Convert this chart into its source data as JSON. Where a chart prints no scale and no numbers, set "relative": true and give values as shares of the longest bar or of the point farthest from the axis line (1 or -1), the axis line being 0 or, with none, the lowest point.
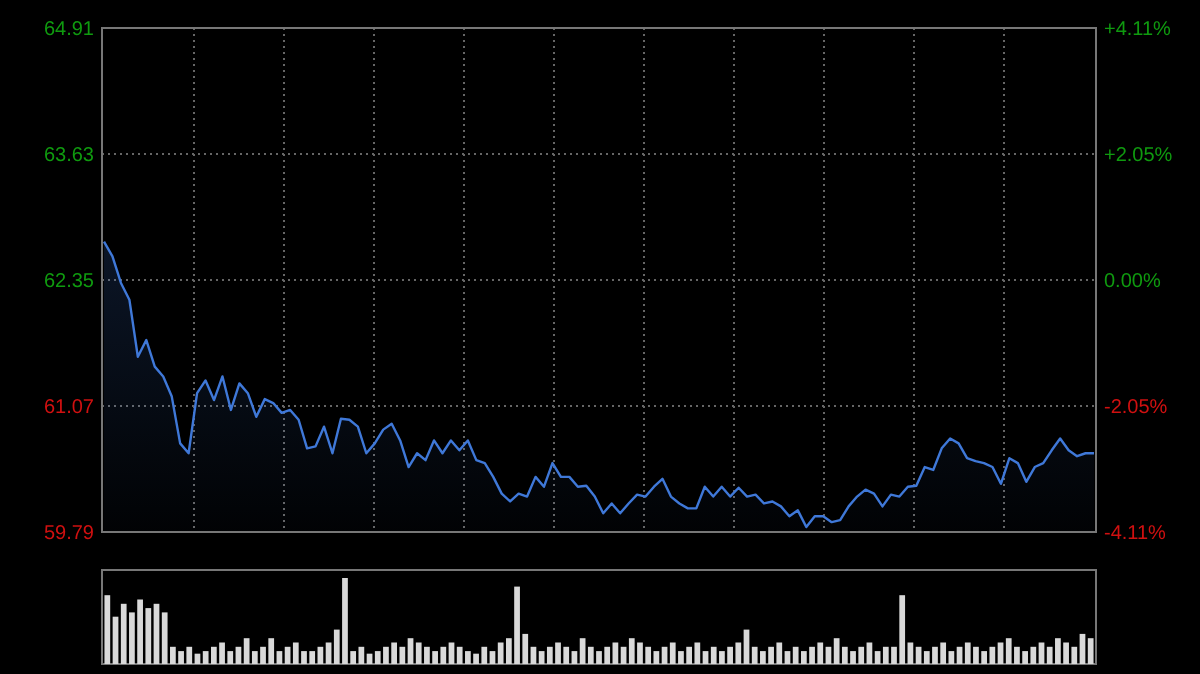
{
  "chart_data": [
    {
      "type": "area",
      "ylim": [
        59.79,
        64.91
      ],
      "y2lim": [
        -4.11,
        4.11
      ],
      "categories": [
        null,
        null,
        null,
        null,
        null,
        null,
        null,
        null,
        null,
        null,
        null,
        null,
        null,
        null,
        null,
        null,
        null,
        null,
        null,
        null,
        null,
        null,
        null,
        null,
        null,
        null,
        null,
        null,
        null,
        null,
        null,
        null,
        null,
        null,
        null,
        null,
        null,
        null,
        null,
        null,
        null,
        null,
        null,
        null,
        null,
        null,
        null,
        null,
        null,
        null,
        null,
        null,
        null,
        null,
        null,
        null,
        null,
        null,
        null,
        null,
        null,
        null,
        null,
        null,
        null,
        null,
        null,
        null,
        null,
        null,
        null,
        null,
        null,
        null,
        null,
        null,
        null,
        null,
        null,
        null,
        null,
        null,
        null,
        null,
        null,
        null,
        null,
        null,
        null,
        null,
        null,
        null,
        null,
        null,
        null,
        null,
        null,
        null,
        null,
        null,
        null,
        null,
        null,
        null,
        null,
        null,
        null,
        null,
        null,
        null,
        null,
        null,
        null,
        null,
        null,
        null,
        null,
        null
      ],
      "yticks": [
        59.79,
        61.07,
        62.35,
        63.63,
        64.91
      ],
      "y2ticks": [
        {
          "value": -4.11,
          "label": "-4.11%"
        },
        {
          "value": -2.05,
          "label": "-2.05%"
        },
        {
          "value": 0,
          "label": "0.00%"
        },
        {
          "value": 2.05,
          "label": "+2.05%"
        },
        {
          "value": 4.11,
          "label": "+4.11%"
        }
      ],
      "grid": true,
      "series": [
        {
          "color": "#3f78d8",
          "values": [
            62.74,
            62.59,
            62.32,
            62.15,
            61.57,
            61.74,
            61.47,
            61.37,
            61.17,
            60.69,
            60.59,
            61.2,
            61.33,
            61.13,
            61.37,
            61.03,
            61.3,
            61.2,
            60.96,
            61.14,
            61.1,
            61.0,
            61.03,
            60.93,
            60.64,
            60.66,
            60.86,
            60.59,
            60.94,
            60.93,
            60.86,
            60.59,
            60.69,
            60.83,
            60.89,
            60.72,
            60.45,
            60.59,
            60.52,
            60.72,
            60.59,
            60.72,
            60.62,
            60.72,
            60.52,
            60.49,
            60.35,
            60.18,
            60.1,
            60.18,
            60.15,
            60.35,
            60.25,
            60.49,
            60.35,
            60.35,
            60.25,
            60.26,
            60.15,
            59.98,
            60.08,
            59.98,
            60.08,
            60.17,
            60.15,
            60.25,
            60.33,
            60.15,
            60.08,
            60.03,
            60.03,
            60.25,
            60.15,
            60.25,
            60.15,
            60.24,
            60.15,
            60.17,
            60.08,
            60.1,
            60.05,
            59.95,
            60.01,
            59.84,
            59.95,
            59.95,
            59.89,
            59.91,
            60.05,
            60.15,
            60.22,
            60.18,
            60.05,
            60.17,
            60.15,
            60.25,
            60.26,
            60.45,
            60.42,
            60.64,
            60.74,
            60.69,
            60.54,
            60.51,
            60.49,
            60.45,
            60.28,
            60.54,
            60.49,
            60.3,
            60.45,
            60.49,
            60.62,
            60.74,
            60.62,
            60.56,
            60.59,
            60.59
          ]
        }
      ]
    },
    {
      "type": "bar",
      "relative": true,
      "color": "#d9d9d9",
      "categories": [
        null,
        null,
        null,
        null,
        null,
        null,
        null,
        null,
        null,
        null,
        null,
        null,
        null,
        null,
        null,
        null,
        null,
        null,
        null,
        null,
        null,
        null,
        null,
        null,
        null,
        null,
        null,
        null,
        null,
        null,
        null,
        null,
        null,
        null,
        null,
        null,
        null,
        null,
        null,
        null,
        null,
        null,
        null,
        null,
        null,
        null,
        null,
        null,
        null,
        null,
        null,
        null,
        null,
        null,
        null,
        null,
        null,
        null,
        null,
        null,
        null,
        null,
        null,
        null,
        null,
        null,
        null,
        null,
        null,
        null,
        null,
        null,
        null,
        null,
        null,
        null,
        null,
        null,
        null,
        null,
        null,
        null,
        null,
        null,
        null,
        null,
        null,
        null,
        null,
        null,
        null,
        null,
        null,
        null,
        null,
        null,
        null,
        null,
        null,
        null,
        null,
        null,
        null,
        null,
        null,
        null,
        null,
        null,
        null,
        null,
        null,
        null,
        null,
        null,
        null,
        null,
        null,
        null,
        null,
        null,
        null
      ],
      "values": [
        0.8,
        0.55,
        0.7,
        0.6,
        0.75,
        0.65,
        0.7,
        0.6,
        0.2,
        0.15,
        0.2,
        0.12,
        0.15,
        0.2,
        0.25,
        0.15,
        0.2,
        0.3,
        0.15,
        0.2,
        0.3,
        0.15,
        0.2,
        0.25,
        0.15,
        0.15,
        0.2,
        0.25,
        0.4,
        1.0,
        0.15,
        0.2,
        0.12,
        0.15,
        0.2,
        0.25,
        0.2,
        0.3,
        0.25,
        0.2,
        0.15,
        0.2,
        0.25,
        0.2,
        0.15,
        0.12,
        0.2,
        0.15,
        0.25,
        0.3,
        0.9,
        0.35,
        0.2,
        0.15,
        0.2,
        0.25,
        0.2,
        0.15,
        0.3,
        0.2,
        0.15,
        0.2,
        0.25,
        0.2,
        0.3,
        0.25,
        0.2,
        0.15,
        0.2,
        0.25,
        0.15,
        0.2,
        0.25,
        0.15,
        0.2,
        0.15,
        0.2,
        0.25,
        0.4,
        0.2,
        0.15,
        0.2,
        0.25,
        0.15,
        0.2,
        0.15,
        0.2,
        0.25,
        0.2,
        0.3,
        0.2,
        0.15,
        0.2,
        0.25,
        0.15,
        0.2,
        0.2,
        0.8,
        0.25,
        0.2,
        0.15,
        0.2,
        0.25,
        0.15,
        0.2,
        0.25,
        0.2,
        0.15,
        0.2,
        0.25,
        0.3,
        0.2,
        0.15,
        0.2,
        0.25,
        0.2,
        0.3,
        0.25,
        0.2,
        0.35,
        0.3
      ]
    }
  ]
}
